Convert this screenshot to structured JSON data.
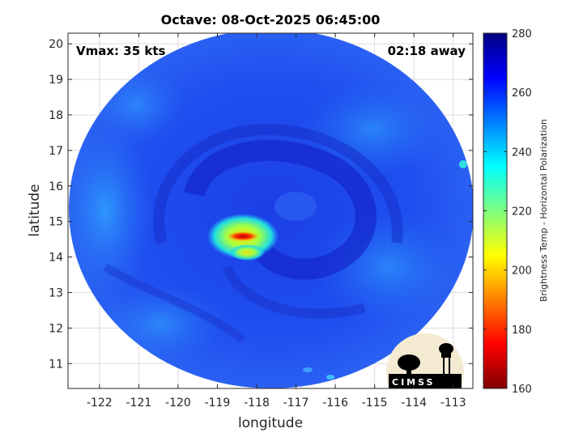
{
  "figure": {
    "title": "Octave: 08-Oct-2025 06:45:00",
    "vmax_label": "Vmax: 35 kts",
    "time_away_label": "02:18 away",
    "xlabel": "longitude",
    "ylabel": "latitude",
    "colorbar_label": "Brightness Temp - Horizontal Polarization",
    "logo_text": "CIMSS"
  },
  "chart_data": {
    "type": "heatmap",
    "title": "Octave: 08-Oct-2025 06:45:00",
    "xlabel": "longitude",
    "ylabel": "latitude",
    "xlim": [
      -122.8,
      -112.5
    ],
    "ylim": [
      10.3,
      20.3
    ],
    "xticks": [
      -122,
      -121,
      -120,
      -119,
      -118,
      -117,
      -116,
      -115,
      -114,
      -113
    ],
    "yticks": [
      11,
      12,
      13,
      14,
      15,
      16,
      17,
      18,
      19,
      20
    ],
    "grid": true,
    "colorbar": {
      "label": "Brightness Temp - Horizontal Polarization",
      "range": [
        160,
        280
      ],
      "ticks": [
        160,
        180,
        200,
        220,
        240,
        260,
        280
      ],
      "colormap": "jet"
    },
    "swath": {
      "center_lon": -117.65,
      "center_lat": 15.4,
      "radius_deg": 5.1
    },
    "storm_center": {
      "lon": -117.0,
      "lat": 15.4
    },
    "cold_core": {
      "lon": -118.3,
      "lat": 14.5,
      "min_temp": 175
    },
    "annotations": [
      "Vmax: 35 kts",
      "02:18 away"
    ]
  }
}
